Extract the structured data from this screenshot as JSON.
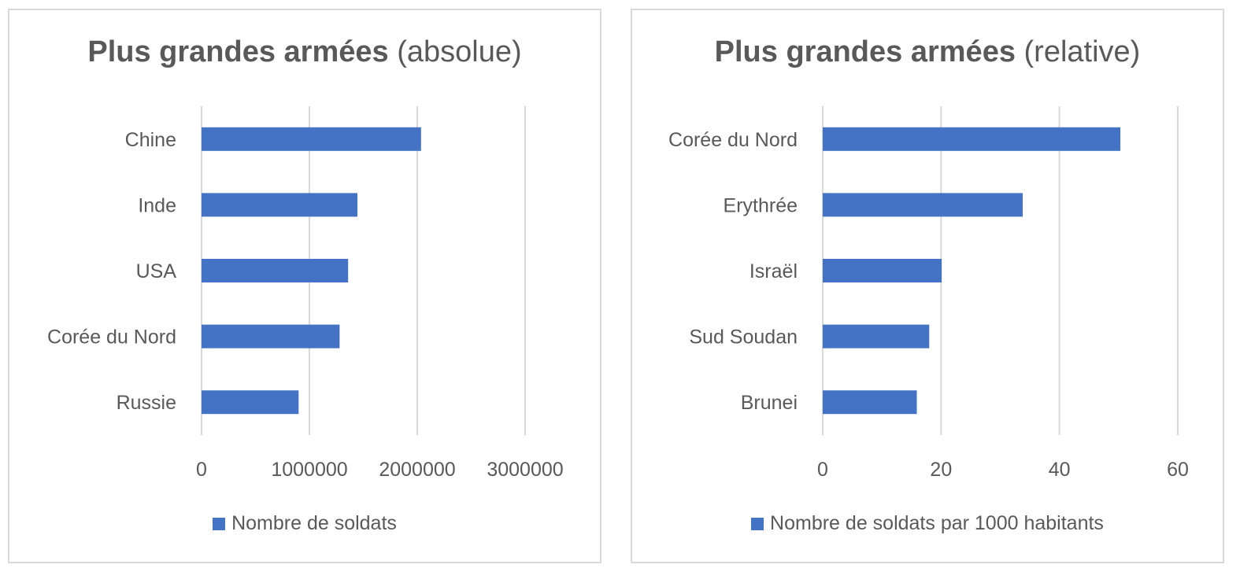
{
  "chart_data": [
    {
      "type": "bar",
      "orientation": "horizontal",
      "title": "Plus grandes armées",
      "title_suffix": "(absolue)",
      "categories": [
        "Chine",
        "Inde",
        "USA",
        "Corée du Nord",
        "Russie"
      ],
      "series": [
        {
          "name": "Nombre de soldats",
          "values": [
            2035000,
            1445000,
            1359000,
            1280000,
            900000
          ]
        }
      ],
      "xlim": [
        0,
        3000000
      ],
      "xticks": [
        0,
        1000000,
        2000000,
        3000000
      ],
      "xtick_labels": [
        "0",
        "1000000",
        "2000000",
        "3000000"
      ],
      "grid": true,
      "legend_position": "bottom",
      "bar_color": "#4472c4"
    },
    {
      "type": "bar",
      "orientation": "horizontal",
      "title": "Plus grandes armées",
      "title_suffix": "(relative)",
      "categories": [
        "Corée du Nord",
        "Erythrée",
        "Israël",
        "Sud Soudan",
        "Brunei"
      ],
      "series": [
        {
          "name": "Nombre de soldats par 1000 habitants",
          "values": [
            50.3,
            33.8,
            20.1,
            18.0,
            15.9
          ]
        }
      ],
      "xlim": [
        0,
        60
      ],
      "xticks": [
        0,
        20,
        40,
        60
      ],
      "xtick_labels": [
        "0",
        "20",
        "40",
        "60"
      ],
      "grid": true,
      "legend_position": "bottom",
      "bar_color": "#4472c4"
    }
  ]
}
